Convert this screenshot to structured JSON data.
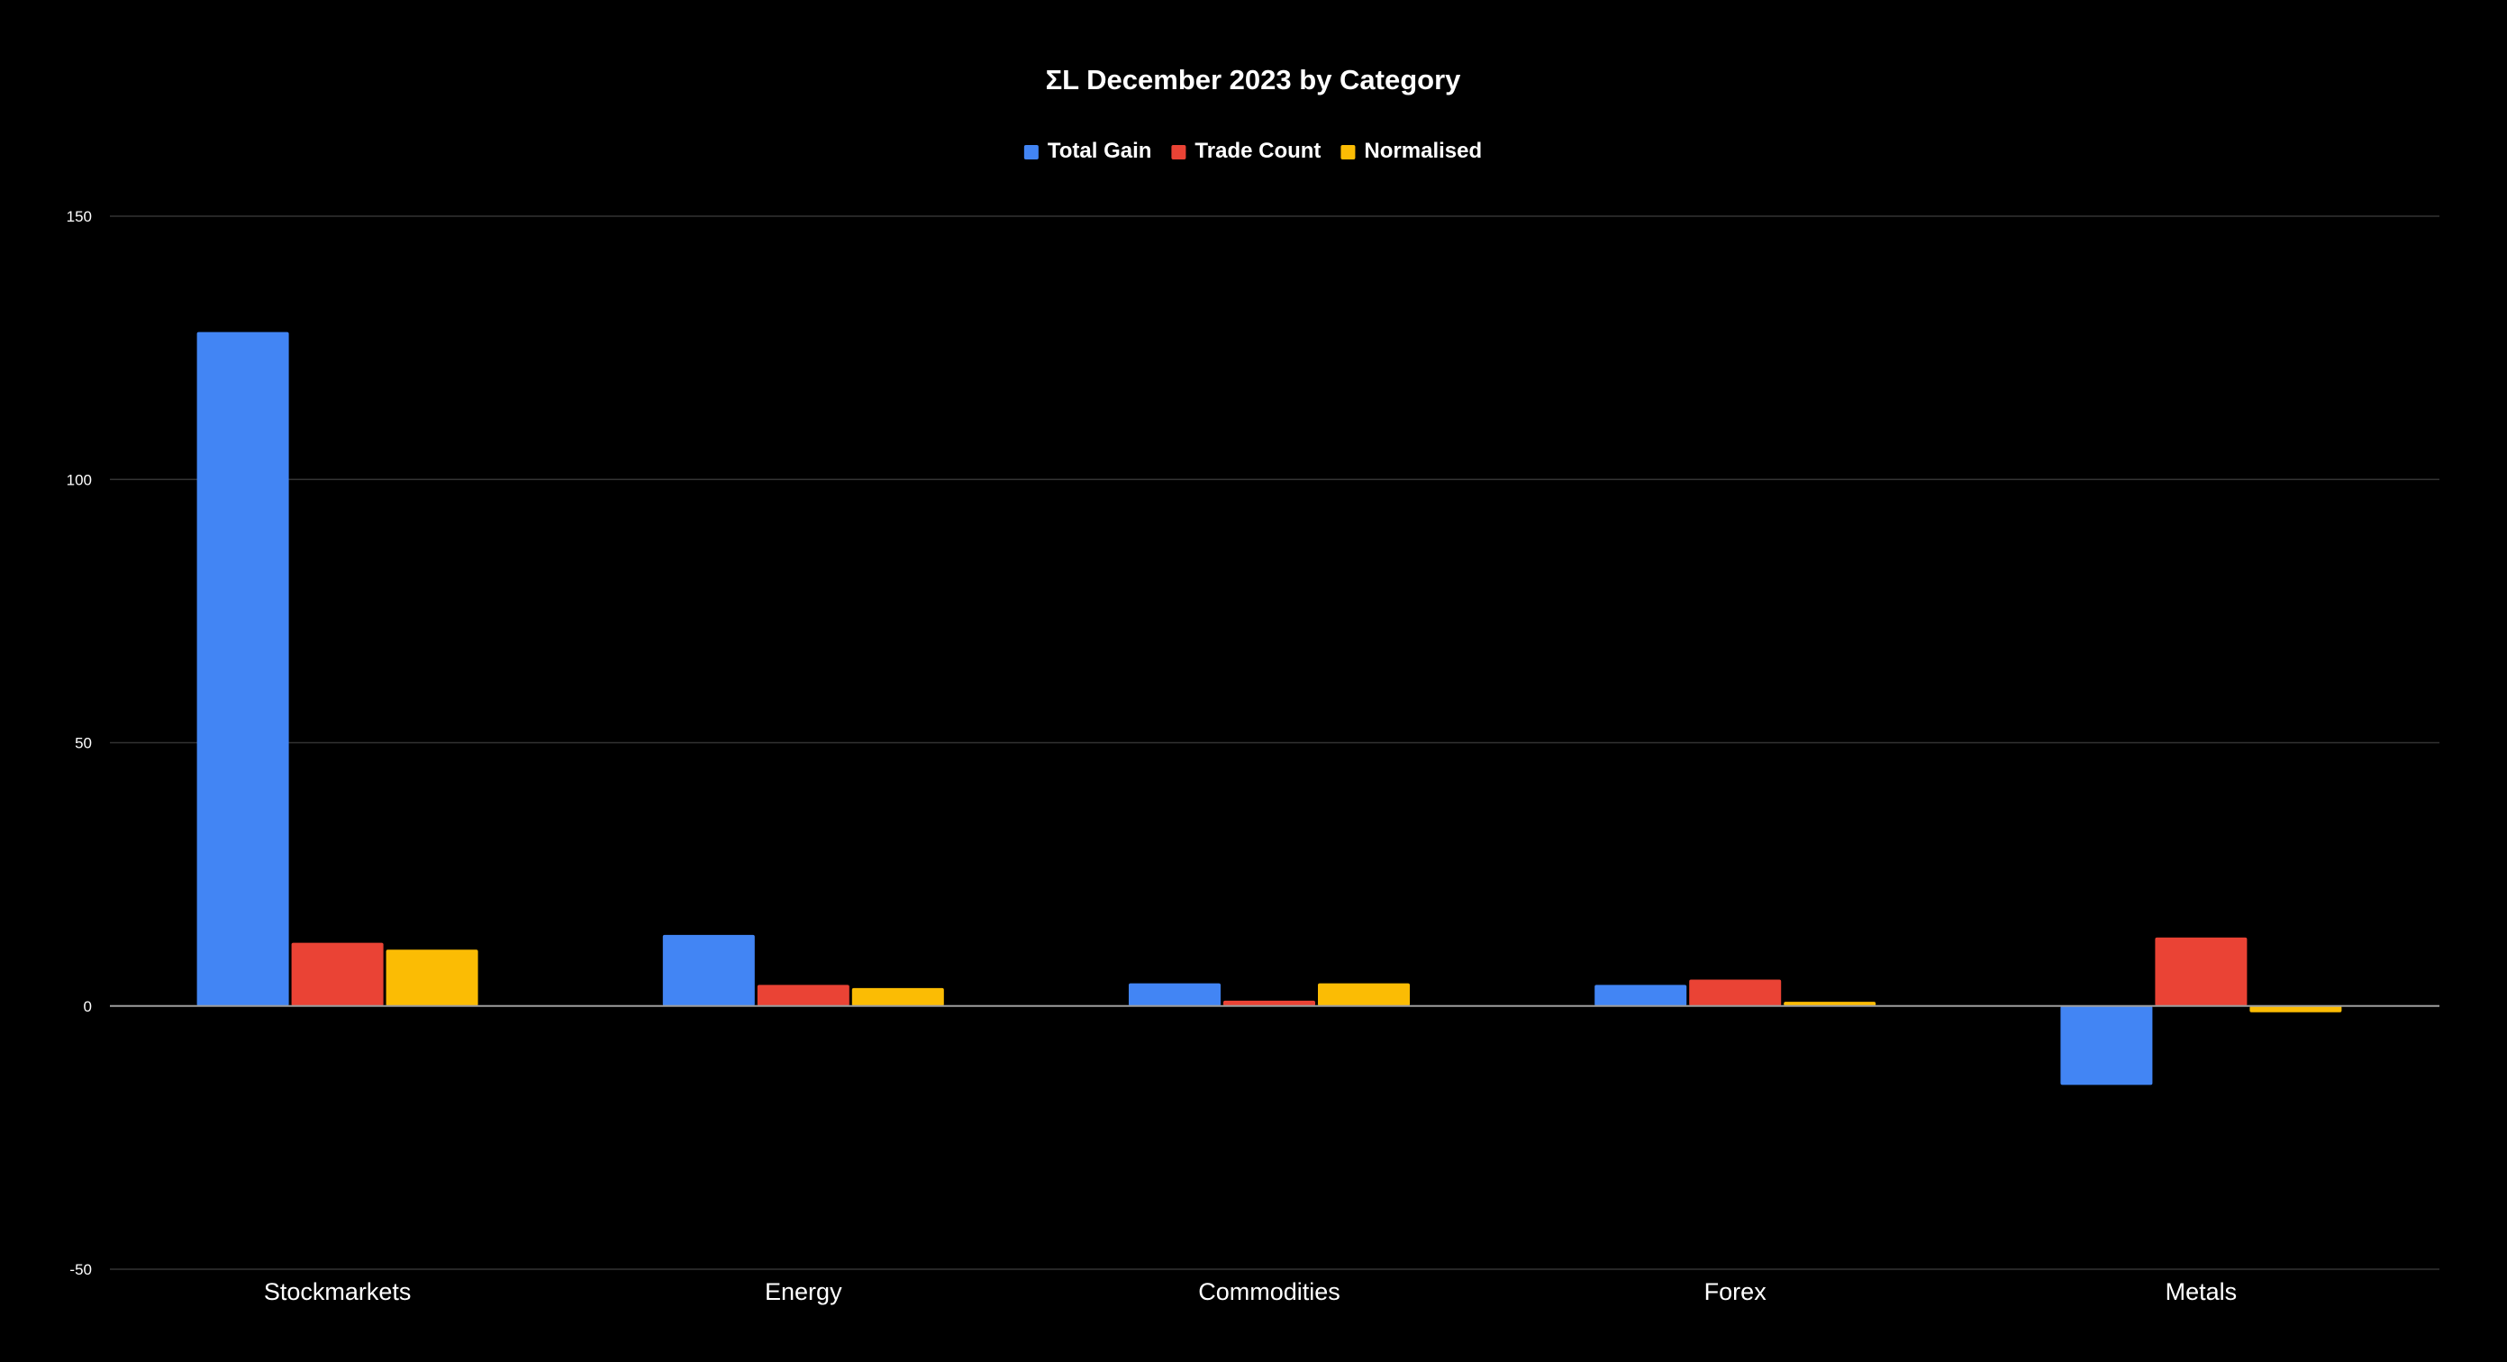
{
  "chart_data": {
    "type": "bar",
    "title": "ΣL December 2023 by Category",
    "xlabel": "",
    "ylabel": "",
    "categories": [
      "Stockmarkets",
      "Energy",
      "Commodities",
      "Forex",
      "Metals"
    ],
    "series": [
      {
        "name": "Total Gain",
        "color": "#4285F4",
        "values": [
          128,
          13.5,
          4.3,
          4,
          -15
        ]
      },
      {
        "name": "Trade Count",
        "color": "#EA4335",
        "values": [
          12,
          4,
          1,
          5,
          13
        ]
      },
      {
        "name": "Normalised",
        "color": "#FBBC04",
        "values": [
          10.7,
          3.4,
          4.3,
          0.8,
          -1.2
        ]
      }
    ],
    "ylim": [
      -50,
      150
    ],
    "yticks": [
      -50,
      0,
      50,
      100,
      150
    ],
    "legend_position": "top-center",
    "grid": true,
    "background": "#000000",
    "gridline_color": "#333333"
  }
}
